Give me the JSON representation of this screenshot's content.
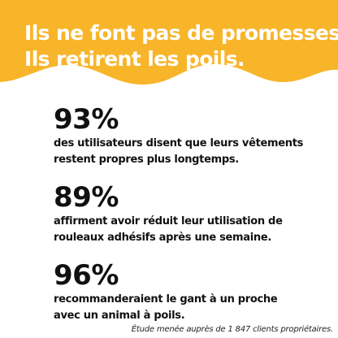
{
  "colors": {
    "banner": "#F8B52A",
    "text": "#111111",
    "headline_text": "#FFFFFF",
    "background": "#FFFFFF"
  },
  "headline": {
    "line1": "Ils ne font pas de promesses.",
    "line2": "Ils retirent les poils."
  },
  "stats": [
    {
      "value": "93%",
      "line1": "des utilisateurs disent que leurs vêtements",
      "line2": "restent propres plus longtemps."
    },
    {
      "value": "89%",
      "line1": "affirment avoir réduit leur utilisation de",
      "line2": "rouleaux adhésifs après une semaine."
    },
    {
      "value": "96%",
      "line1": "recommanderaient le gant à un proche",
      "line2": "avec un animal à poils."
    }
  ],
  "footnote": "Étude menée auprès de 1 847 clients propriétaires."
}
